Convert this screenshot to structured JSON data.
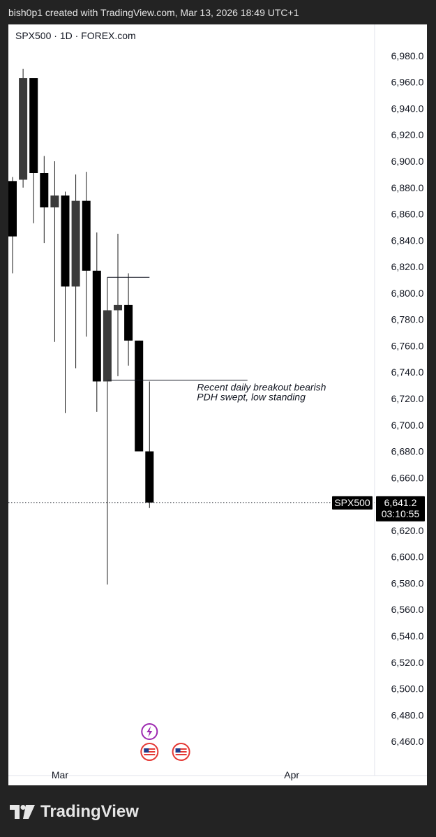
{
  "header": {
    "caption": "bish0p1 created with TradingView.com, Mar 13, 2026 18:49 UTC+1"
  },
  "chart_title": "SPX500 · 1D · FOREX.com",
  "footer": {
    "brand": "TradingView"
  },
  "chart_data": {
    "type": "candlestick",
    "symbol": "SPX500",
    "interval": "1D",
    "source": "FOREX.com",
    "y_axis": {
      "range": [
        6450,
        6990
      ],
      "ticks": [
        "6,980.0",
        "6,960.0",
        "6,940.0",
        "6,920.0",
        "6,900.0",
        "6,880.0",
        "6,860.0",
        "6,840.0",
        "6,820.0",
        "6,800.0",
        "6,780.0",
        "6,760.0",
        "6,740.0",
        "6,720.0",
        "6,700.0",
        "6,680.0",
        "6,660.0",
        "6,620.0",
        "6,600.0",
        "6,580.0",
        "6,560.0",
        "6,540.0",
        "6,520.0",
        "6,500.0",
        "6,480.0",
        "6,460.0"
      ]
    },
    "x_axis": {
      "ticks": [
        {
          "label": "Mar",
          "bar": 4.5
        },
        {
          "label": "Apr",
          "bar": 26.5
        }
      ]
    },
    "candles": [
      {
        "o": 6885,
        "h": 6888,
        "l": 6815,
        "c": 6843
      },
      {
        "o": 6886,
        "h": 6970,
        "l": 6880,
        "c": 6963
      },
      {
        "o": 6963,
        "h": 6963,
        "l": 6853,
        "c": 6891
      },
      {
        "o": 6891,
        "h": 6904,
        "l": 6838,
        "c": 6865
      },
      {
        "o": 6865,
        "h": 6900,
        "l": 6763,
        "c": 6874
      },
      {
        "o": 6874,
        "h": 6877,
        "l": 6709,
        "c": 6805
      },
      {
        "o": 6805,
        "h": 6890,
        "l": 6743,
        "c": 6870
      },
      {
        "o": 6870,
        "h": 6892,
        "l": 6767,
        "c": 6817
      },
      {
        "o": 6817,
        "h": 6846,
        "l": 6710,
        "c": 6733
      },
      {
        "o": 6733,
        "h": 6812,
        "l": 6579,
        "c": 6787
      },
      {
        "o": 6787,
        "h": 6845,
        "l": 6737,
        "c": 6791
      },
      {
        "o": 6791,
        "h": 6815,
        "l": 6745,
        "c": 6764
      },
      {
        "o": 6764,
        "h": 6764,
        "l": 6680,
        "c": 6680
      },
      {
        "o": 6680,
        "h": 6733,
        "l": 6637,
        "c": 6641.2
      }
    ],
    "levels": [
      {
        "price": 6812,
        "from_bar": 9,
        "to_bar": 13
      },
      {
        "price": 6734,
        "from_bar": 9,
        "to_bar": 22.3
      }
    ],
    "annotation": {
      "lines": [
        "Recent daily breakout bearish",
        "PDH swept, low standing"
      ],
      "price": 6726,
      "bar": 17.5
    },
    "last_price": {
      "symbol": "SPX500",
      "value": "6,641.2",
      "countdown": "03:10:55",
      "price": 6641.2
    },
    "events": [
      {
        "type": "lightning",
        "bar": 13,
        "color": "#9c27b0"
      },
      {
        "type": "us-flag",
        "bar": 13
      },
      {
        "type": "us-flag",
        "bar": 16
      }
    ]
  }
}
